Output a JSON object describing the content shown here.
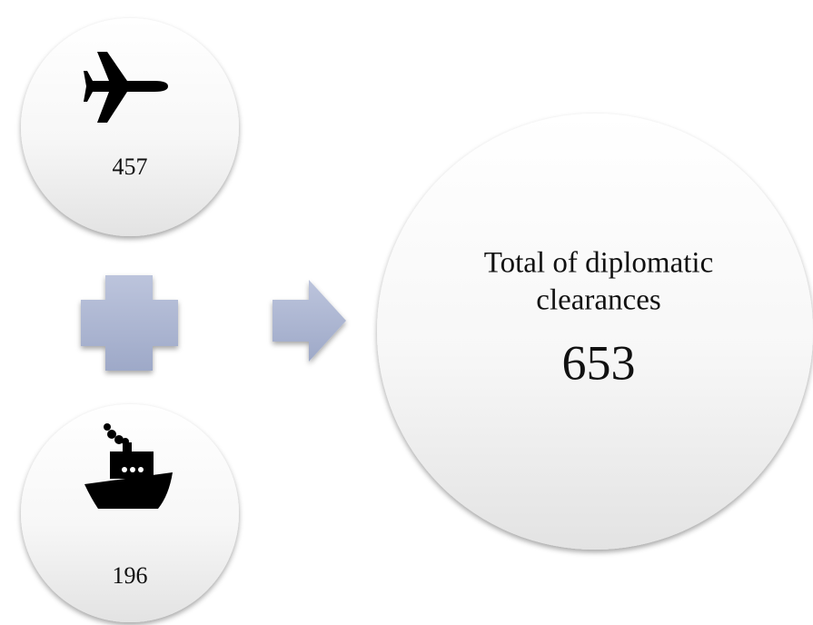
{
  "inputs": [
    {
      "value": 457
    },
    {
      "value": 196
    }
  ],
  "result": {
    "label_lines": [
      "Total of diplomatic",
      "clearances"
    ],
    "value": 653
  }
}
